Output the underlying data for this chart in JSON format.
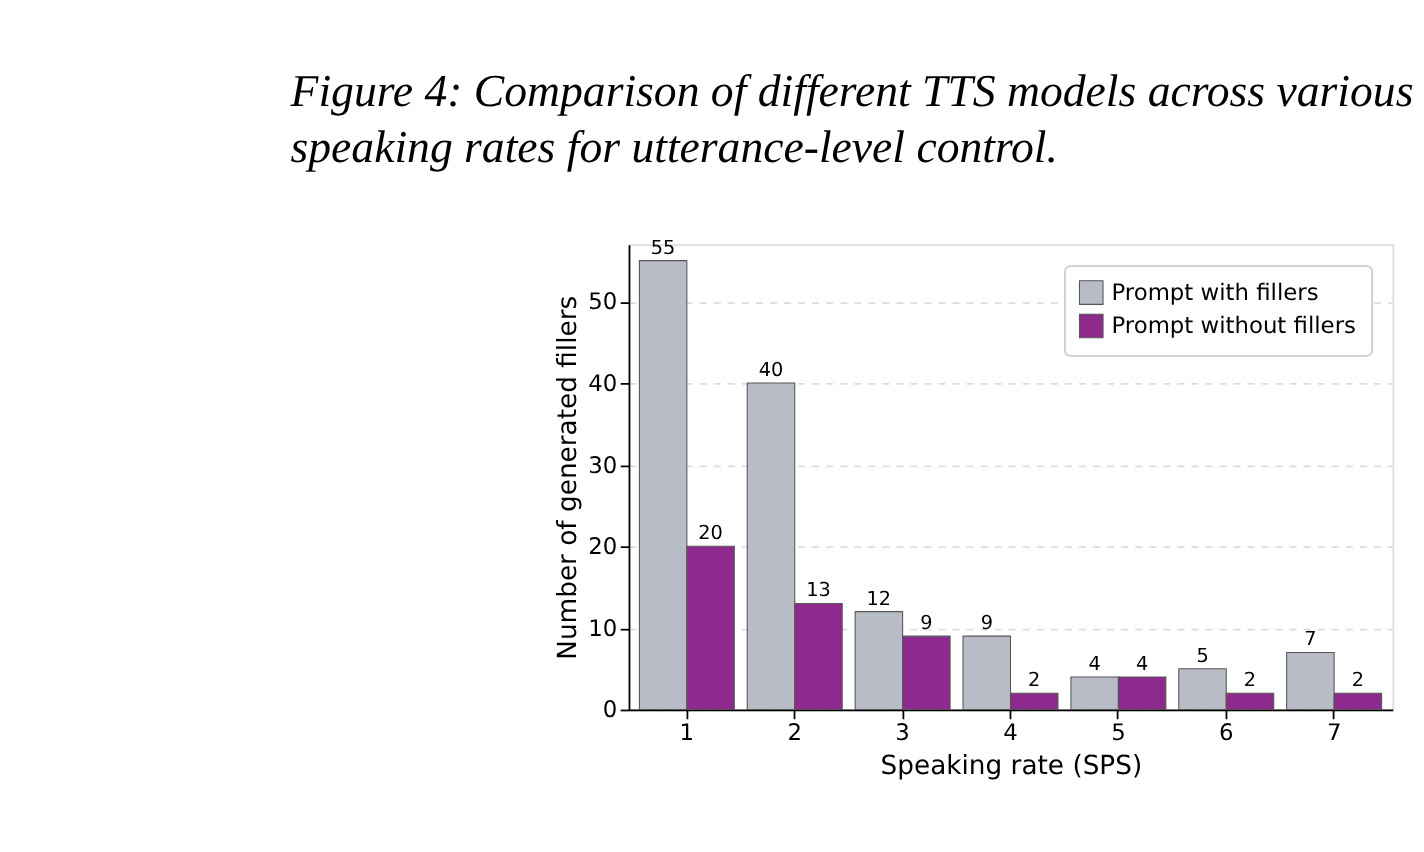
{
  "chart_data": {
    "type": "bar",
    "title": "Figure 4: Comparison of different TTS models across various speaking rates for utterance-level control.",
    "xlabel": "Speaking rate (SPS)",
    "ylabel": "Number of generated fillers",
    "categories": [
      "1",
      "2",
      "3",
      "4",
      "5",
      "6",
      "7"
    ],
    "series": [
      {
        "name": "Prompt with fillers",
        "color": "#b8bcc6",
        "values": [
          55,
          40,
          12,
          9,
          4,
          5,
          7
        ]
      },
      {
        "name": "Prompt without fillers",
        "color": "#8e2a8e",
        "values": [
          20,
          13,
          9,
          2,
          4,
          2,
          2
        ]
      }
    ],
    "ylim": [
      0,
      57
    ],
    "yticks": [
      0,
      10,
      20,
      30,
      40,
      50
    ],
    "grid": "y",
    "legend": "top right",
    "data_labels": true
  }
}
